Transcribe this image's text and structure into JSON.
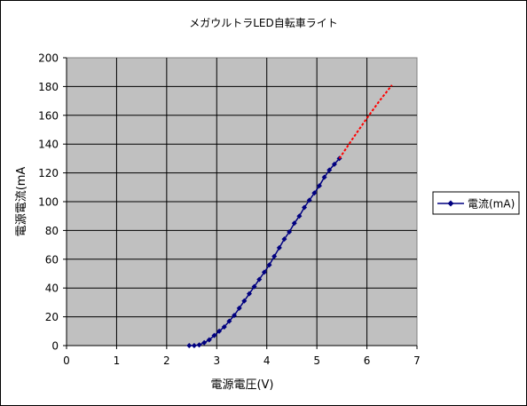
{
  "chart_data": {
    "type": "line",
    "title": "メガウルトラLED自転車ライト",
    "xlabel": "電源電圧(V)",
    "ylabel": "電源電流(mA",
    "xlim": [
      0,
      7
    ],
    "ylim": [
      0,
      200
    ],
    "x_ticks": [
      "0",
      "1",
      "2",
      "3",
      "4",
      "5",
      "6",
      "7"
    ],
    "y_ticks": [
      "0",
      "20",
      "40",
      "60",
      "80",
      "100",
      "120",
      "140",
      "160",
      "180",
      "200"
    ],
    "grid": true,
    "legend_position": "right",
    "series": [
      {
        "name": "電流(mA)",
        "color": "#000080",
        "marker": "diamond",
        "x": [
          2.45,
          2.55,
          2.65,
          2.75,
          2.85,
          2.95,
          3.05,
          3.15,
          3.25,
          3.35,
          3.45,
          3.55,
          3.65,
          3.75,
          3.85,
          3.95,
          4.05,
          4.15,
          4.25,
          4.35,
          4.45,
          4.55,
          4.65,
          4.75,
          4.85,
          4.95,
          5.05,
          5.15,
          5.25,
          5.35,
          5.45
        ],
        "y": [
          0,
          0,
          0.5,
          2,
          4,
          7,
          10,
          13,
          17,
          21,
          26,
          31,
          36,
          41,
          46,
          51,
          56,
          62,
          68,
          74,
          79,
          85,
          90,
          96,
          101,
          106,
          111,
          117,
          122,
          126,
          130
        ]
      },
      {
        "name": "",
        "color": "#ff0000",
        "dashed": true,
        "x": [
          5.45,
          5.7,
          6.0,
          6.25,
          6.5
        ],
        "y": [
          130,
          143,
          158,
          170,
          181
        ]
      }
    ]
  }
}
